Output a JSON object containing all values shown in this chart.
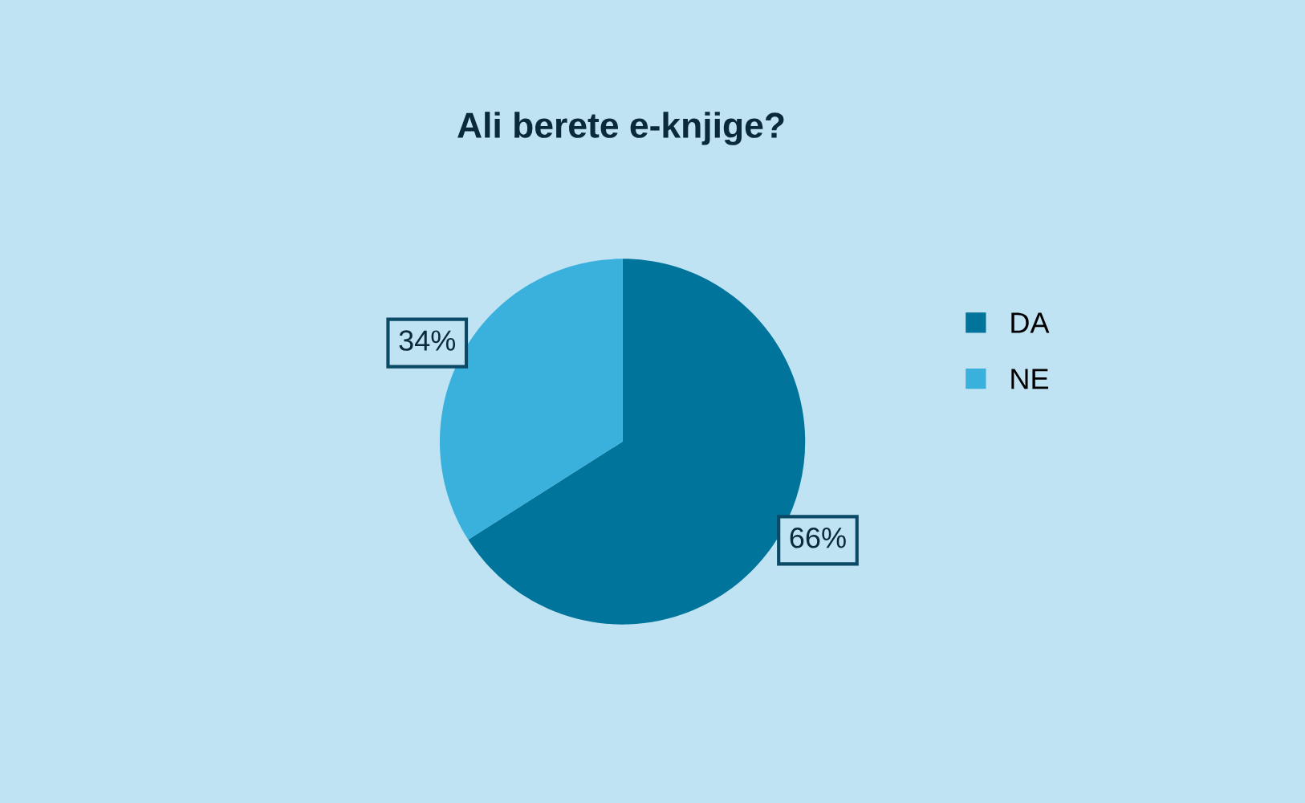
{
  "chart_data": {
    "type": "pie",
    "title": "Ali berete e-knjige?",
    "categories": [
      "DA",
      "NE"
    ],
    "values": [
      66,
      34
    ],
    "colors": [
      "#00749a",
      "#3ab0dc"
    ],
    "value_labels": [
      "66%",
      "34%"
    ],
    "legend": "right"
  }
}
